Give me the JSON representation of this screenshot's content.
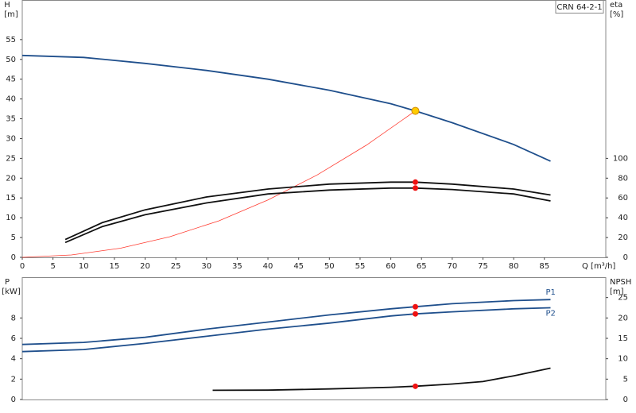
{
  "chart_data": [
    {
      "type": "line",
      "title": "CRN 64-2-1",
      "y_label": "H",
      "y_unit": "[m]",
      "y2_label": "eta",
      "y2_unit": "[%]",
      "x_label": "Q [m³/h]",
      "xlim": [
        0,
        95
      ],
      "xticks": [
        0,
        5,
        10,
        15,
        20,
        25,
        30,
        35,
        40,
        45,
        50,
        55,
        60,
        65,
        70,
        75,
        80,
        85
      ],
      "ylim": [
        0,
        65
      ],
      "yticks": [
        0,
        5,
        10,
        15,
        20,
        25,
        30,
        35,
        40,
        45,
        50,
        55
      ],
      "y2lim": [
        0,
        260
      ],
      "y2ticks": [
        0,
        20,
        40,
        60,
        80,
        100
      ],
      "grid": false,
      "series": [
        {
          "color": "#1f4f8c",
          "x": [
            0,
            10,
            20,
            30,
            40,
            50,
            60,
            64,
            70,
            80,
            86
          ],
          "values": [
            51,
            50.5,
            49,
            47.2,
            45,
            42.2,
            38.8,
            37,
            34,
            28.5,
            24.3
          ]
        },
        {
          "color": "#ff3b30",
          "x": [
            0,
            8,
            16,
            24,
            32,
            40,
            48,
            56,
            64
          ],
          "values": [
            0,
            0.6,
            2.3,
            5.2,
            9.2,
            14.5,
            20.8,
            28.3,
            37
          ]
        },
        {
          "color": "#111111",
          "axis": "y2",
          "x": [
            7,
            13,
            20,
            30,
            40,
            50,
            60,
            64,
            70,
            80,
            86
          ],
          "values": [
            18,
            35,
            48,
            61,
            69,
            74,
            76,
            76,
            74,
            69,
            63
          ]
        },
        {
          "color": "#111111",
          "axis": "y2",
          "x": [
            7,
            13,
            20,
            30,
            40,
            50,
            60,
            64,
            70,
            80,
            86
          ],
          "values": [
            15,
            31,
            43,
            55,
            64,
            68,
            70,
            70,
            68.5,
            64,
            57
          ]
        }
      ],
      "markers": [
        {
          "color": "#ffcc00",
          "x": 64,
          "y": 37
        },
        {
          "color": "#ee1111",
          "axis": "y2",
          "x": 64,
          "y": 76
        },
        {
          "color": "#ee1111",
          "axis": "y2",
          "x": 64,
          "y": 70
        }
      ]
    },
    {
      "type": "line",
      "y_label": "P",
      "y_unit": "[kW]",
      "y2_label": "NPSH",
      "y2_unit": "[m]",
      "xlim": [
        0,
        95
      ],
      "ylim": [
        0,
        12
      ],
      "yticks": [
        0,
        2,
        4,
        6,
        8
      ],
      "y2lim": [
        0,
        30
      ],
      "y2ticks": [
        0,
        5,
        10,
        15,
        20,
        25
      ],
      "grid": false,
      "series": [
        {
          "name": "P1",
          "color": "#1f4f8c",
          "x": [
            0,
            10,
            20,
            30,
            40,
            50,
            60,
            64,
            70,
            80,
            86
          ],
          "values": [
            5.4,
            5.6,
            6.1,
            6.9,
            7.6,
            8.3,
            8.9,
            9.1,
            9.4,
            9.7,
            9.8
          ]
        },
        {
          "name": "P2",
          "color": "#1f4f8c",
          "x": [
            0,
            10,
            20,
            30,
            40,
            50,
            60,
            64,
            70,
            80,
            86
          ],
          "values": [
            4.7,
            4.9,
            5.5,
            6.2,
            6.9,
            7.5,
            8.2,
            8.4,
            8.6,
            8.9,
            9.0
          ]
        },
        {
          "color": "#111111",
          "axis": "y2",
          "x": [
            31,
            40,
            50,
            60,
            64,
            70,
            75,
            80,
            86
          ],
          "values": [
            2.25,
            2.3,
            2.6,
            3.0,
            3.25,
            3.8,
            4.4,
            5.8,
            7.7
          ]
        }
      ],
      "markers": [
        {
          "color": "#ee1111",
          "x": 64,
          "y": 9.1
        },
        {
          "color": "#ee1111",
          "x": 64,
          "y": 8.4
        },
        {
          "color": "#ee1111",
          "axis": "y2",
          "x": 64,
          "y": 3.25
        }
      ]
    }
  ]
}
